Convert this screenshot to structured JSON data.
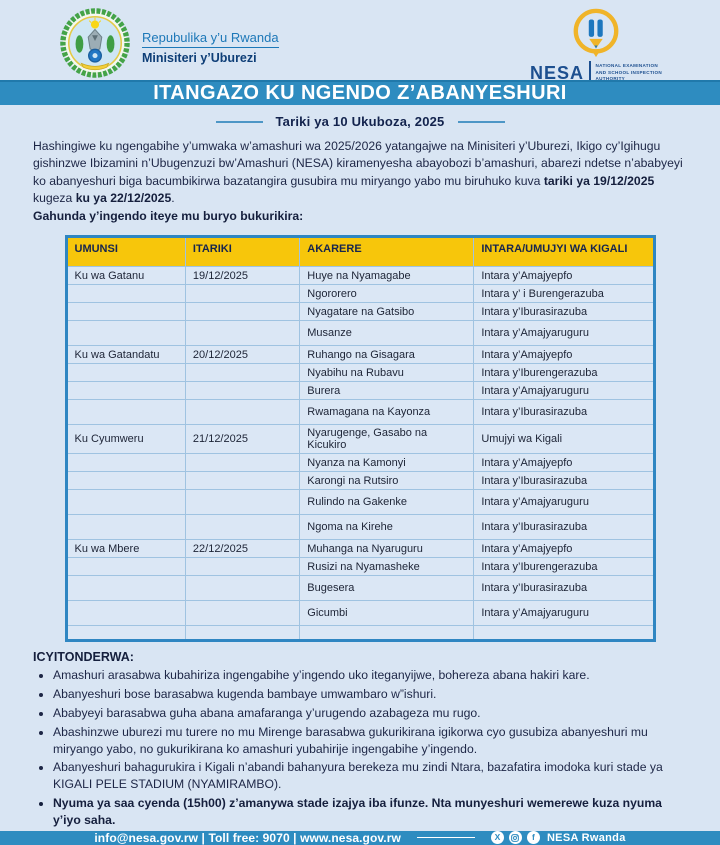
{
  "page": {
    "background": "#d9e5f3",
    "accent_blue": "#2e8cc0",
    "header_yellow": "#f7c60b",
    "navy": "#13234d"
  },
  "header": {
    "republic": "Repubulika y’u Rwanda",
    "ministry": "Minisiteri y’Uburezi",
    "nesa_acronym": "NESA",
    "nesa_full": [
      "NATIONAL EXAMINATION",
      "AND SCHOOL INSPECTION",
      "AUTHORITY"
    ]
  },
  "banner": {
    "title": "ITANGAZO KU NGENDO Z’ABANYESHURI"
  },
  "date_line": {
    "text": "Tariki ya 10 Ukuboza, 2025"
  },
  "intro": {
    "part1": "Hashingiwe ku ngengabihe y’umwaka w’amashuri wa 2025/2026 yatangajwe na Minisiteri y’Uburezi, Ikigo cy’Igihugu gishinzwe Ibizamini n’Ubugenzuzi bw’Amashuri (NESA) kiramenyesha abayobozi b’amashuri, abarezi ndetse n’ababyeyi ko abanyeshuri biga bacumbikirwa bazatangira gusubira mu miryango yabo mu biruhuko kuva ",
    "bold1": "tariki ya 19/12/2025",
    "part2": " kugeza ",
    "bold2": "ku ya 22/12/2025",
    "part3": ".",
    "lead": "Gahunda y’ingendo iteye mu buryo bukurikira:"
  },
  "table": {
    "headers": [
      "UMUNSI",
      "ITARIKI",
      "AKARERE",
      "INTARA/UMUJYI WA KIGALI"
    ],
    "rows": [
      {
        "day": "Ku wa Gatanu",
        "date": "19/12/2025",
        "district": "Huye na Nyamagabe",
        "province": "Intara y’Amajyepfo"
      },
      {
        "day": "",
        "date": "",
        "district": "Ngororero",
        "province": "Intara y’ i Burengerazuba"
      },
      {
        "day": "",
        "date": "",
        "district": "Nyagatare na Gatsibo",
        "province": "Intara y’Iburasirazuba"
      },
      {
        "day": "",
        "date": "",
        "district": "Musanze",
        "province": "Intara y’Amajyaruguru",
        "tall": true
      },
      {
        "day": "Ku wa Gatandatu",
        "date": "20/12/2025",
        "district": "Ruhango na Gisagara",
        "province": "Intara y’Amajyepfo"
      },
      {
        "day": "",
        "date": "",
        "district": "Nyabihu na Rubavu",
        "province": "Intara y’Iburengerazuba"
      },
      {
        "day": "",
        "date": "",
        "district": "Burera",
        "province": "Intara y’Amajyaruguru"
      },
      {
        "day": "",
        "date": "",
        "district": "Rwamagana na Kayonza",
        "province": "Intara y’Iburasirazuba",
        "tall": true
      },
      {
        "day": "Ku Cyumweru",
        "date": "21/12/2025",
        "district": "Nyarugenge, Gasabo na Kicukiro",
        "province": "Umujyi wa Kigali"
      },
      {
        "day": "",
        "date": "",
        "district": "Nyanza na Kamonyi",
        "province": "Intara y’Amajyepfo"
      },
      {
        "day": "",
        "date": "",
        "district": "Karongi na Rutsiro",
        "province": "Intara y’Iburasirazuba"
      },
      {
        "day": "",
        "date": "",
        "district": "Rulindo na Gakenke",
        "province": "Intara y’Amajyaruguru",
        "tall": true
      },
      {
        "day": "",
        "date": "",
        "district": "Ngoma na Kirehe",
        "province": "Intara y’Iburasirazuba",
        "tall": true
      },
      {
        "day": "Ku wa Mbere",
        "date": "22/12/2025",
        "district": "Muhanga na Nyaruguru",
        "province": "Intara y’Amajyepfo"
      },
      {
        "day": "",
        "date": "",
        "district": "Rusizi na Nyamasheke",
        "province": "Intara y’Iburengerazuba"
      },
      {
        "day": "",
        "date": "",
        "district": "Bugesera",
        "province": "Intara y’Iburasirazuba",
        "tall": true
      },
      {
        "day": "",
        "date": "",
        "district": "Gicumbi",
        "province": "Intara y’Amajyaruguru",
        "tall": true
      },
      {
        "day": "",
        "date": "",
        "district": "",
        "province": "",
        "filler": true
      }
    ]
  },
  "notes": {
    "title": "ICYITONDERWA:",
    "items": [
      {
        "text": "Amashuri arasabwa kubahiriza ingengabihe y’ingendo uko iteganyijwe, bohereza abana hakiri kare.",
        "bold": false
      },
      {
        "text": "Abanyeshuri bose barasabwa kugenda bambaye umwambaro w”ishuri.",
        "bold": false
      },
      {
        "text": "Ababyeyi barasabwa guha abana amafaranga y’urugendo azabageza mu rugo.",
        "bold": false
      },
      {
        "text": "Abashinzwe uburezi mu turere no mu Mirenge barasabwa gukurikirana igikorwa cyo gusubiza abanyeshuri mu miryango yabo, no gukurikirana ko amashuri yubahirije ingengabihe y’ingendo.",
        "bold": false
      },
      {
        "text": "Abanyeshuri bahagurukira i Kigali n’abandi bahanyura berekeza mu zindi Ntara, bazafatira imodoka kuri stade ya KIGALI PELE STADIUM (NYAMIRAMBO).",
        "bold": false
      },
      {
        "text": "Nyuma ya saa cyenda (15h00) z’amanywa stade izajya iba ifunze. Nta munyeshuri wemerewe kuza nyuma y’iyo saha.",
        "bold": true
      }
    ]
  },
  "footer": {
    "contact": "info@nesa.gov.rw | Toll free: 9070 | www.nesa.gov.rw",
    "brand": "NESA  Rwanda",
    "social_icons": [
      "x-icon",
      "instagram-icon",
      "facebook-icon"
    ]
  }
}
